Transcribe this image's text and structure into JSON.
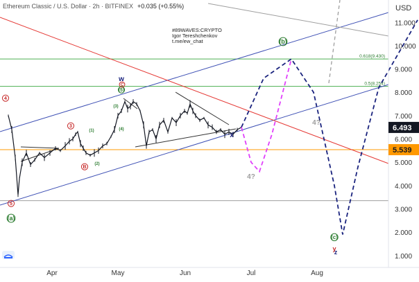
{
  "header": {
    "symbol_line": "Ethereum Classic / U.S. Dollar · 2h · BITFINEX",
    "change": "+0.035 (+0.55%)"
  },
  "author": {
    "line1": "#89WAVES:CRYPTO",
    "line2": "Igor Tereshchenkov",
    "line3": "t.me/ew_chat"
  },
  "chart_data": {
    "type": "line",
    "title": "Ethereum Classic / U.S. Dollar · 2h · BITFINEX",
    "y_axis": {
      "unit_label": "USD",
      "ticks": [
        1,
        2,
        3,
        4,
        5,
        6,
        7,
        8,
        9,
        10,
        11
      ],
      "scale": "linear",
      "position": "right"
    },
    "x_axis": {
      "ticks": [
        "Apr",
        "May",
        "Jun",
        "Jul",
        "Aug"
      ]
    },
    "price_labels": {
      "current": {
        "value": "6.493",
        "color": "#131722"
      },
      "level": {
        "value": "5.539",
        "color": "#ff9800"
      }
    },
    "fib_labels": [
      {
        "text": "0.618(9.430)",
        "value": 9.43
      },
      {
        "text": "0.5(8.254)",
        "value": 8.254
      }
    ],
    "horizontal_levels": [
      {
        "value": 9.43,
        "color": "#4caf50"
      },
      {
        "value": 8.254,
        "color": "#4caf50"
      },
      {
        "value": 5.539,
        "color": "#ff9800"
      },
      {
        "value": 3.35,
        "color": "#9e9e9e"
      }
    ],
    "wave_labels": [
      {
        "text": "w",
        "color": "#1a237e"
      },
      {
        "text": "(5)",
        "color": "#2e7d32"
      },
      {
        "text": "(3)",
        "color": "#2e7d32"
      },
      {
        "text": "(4)",
        "color": "#2e7d32"
      },
      {
        "text": "(1)",
        "color": "#2e7d32"
      },
      {
        "text": "(2)",
        "color": "#2e7d32"
      },
      {
        "text": "(a)",
        "color": "#2e7d32"
      },
      {
        "text": "(b)",
        "color": "#2e7d32"
      },
      {
        "text": "(c)",
        "color": "#2e7d32"
      },
      {
        "text": "x",
        "color": "#1a237e"
      },
      {
        "text": "y",
        "color": "#c62828"
      },
      {
        "text": "z",
        "color": "#1a237e"
      },
      {
        "text": "4?",
        "color": "#9e9e9e"
      },
      {
        "text": "4?",
        "color": "#9e9e9e"
      },
      {
        "text": "5",
        "color": "#c62828"
      },
      {
        "text": "4",
        "color": "#c62828"
      },
      {
        "text": "3",
        "color": "#c62828"
      },
      {
        "text": "A",
        "color": "#c62828"
      },
      {
        "text": "B",
        "color": "#c62828"
      },
      {
        "text": "C",
        "color": "#c62828"
      }
    ],
    "price_series": {
      "description_values": [
        [
          0,
          7.0
        ],
        [
          5,
          6.4
        ],
        [
          10,
          5.2
        ],
        [
          14,
          3.6
        ],
        [
          16,
          4.3
        ],
        [
          20,
          5.0
        ],
        [
          26,
          5.4
        ],
        [
          32,
          4.9
        ],
        [
          38,
          5.1
        ],
        [
          45,
          5.4
        ],
        [
          52,
          5.2
        ],
        [
          60,
          5.4
        ],
        [
          68,
          5.6
        ],
        [
          75,
          5.5
        ],
        [
          82,
          5.7
        ],
        [
          88,
          5.9
        ],
        [
          93,
          6.0
        ],
        [
          97,
          6.2
        ],
        [
          100,
          6.3
        ],
        [
          104,
          5.8
        ],
        [
          108,
          5.6
        ],
        [
          112,
          5.4
        ],
        [
          118,
          5.3
        ],
        [
          124,
          5.4
        ],
        [
          130,
          5.5
        ],
        [
          136,
          5.7
        ],
        [
          142,
          5.8
        ],
        [
          148,
          6.1
        ],
        [
          153,
          6.4
        ],
        [
          158,
          7.0
        ],
        [
          163,
          7.2
        ],
        [
          168,
          7.6
        ],
        [
          172,
          7.3
        ],
        [
          176,
          7.4
        ],
        [
          180,
          7.6
        ],
        [
          185,
          7.5
        ],
        [
          190,
          7.2
        ],
        [
          195,
          6.6
        ],
        [
          199,
          5.7
        ],
        [
          203,
          6.3
        ],
        [
          208,
          6.4
        ],
        [
          213,
          6.0
        ],
        [
          218,
          6.6
        ],
        [
          224,
          6.8
        ],
        [
          230,
          6.3
        ],
        [
          236,
          6.9
        ],
        [
          242,
          6.7
        ],
        [
          248,
          7.0
        ],
        [
          254,
          7.2
        ],
        [
          258,
          7.1
        ],
        [
          262,
          7.5
        ],
        [
          266,
          7.2
        ],
        [
          270,
          7.0
        ],
        [
          276,
          6.8
        ],
        [
          282,
          6.9
        ],
        [
          288,
          6.6
        ],
        [
          294,
          6.5
        ],
        [
          300,
          6.3
        ],
        [
          306,
          6.4
        ],
        [
          312,
          6.2
        ],
        [
          318,
          6.3
        ],
        [
          324,
          6.2
        ],
        [
          330,
          6.4
        ],
        [
          336,
          6.5
        ]
      ]
    },
    "projection_paths": [
      {
        "name": "",
        "style": "dashed",
        "color": "#1a237e",
        "points": [
          [
            336,
            6.5
          ],
          [
            368,
            8.6
          ],
          [
            408,
            9.43
          ],
          [
            440,
            8.0
          ],
          [
            470,
            4.0
          ],
          [
            482,
            1.9
          ],
          [
            504,
            4.8
          ],
          [
            534,
            8.2
          ],
          [
            590,
            11.1
          ]
        ]
      },
      {
        "name": "",
        "style": "dashed",
        "color": "#e040fb",
        "points": [
          [
            336,
            6.5
          ],
          [
            350,
            5.0
          ],
          [
            362,
            4.6
          ],
          [
            380,
            6.2
          ],
          [
            408,
            9.43
          ]
        ]
      }
    ]
  }
}
